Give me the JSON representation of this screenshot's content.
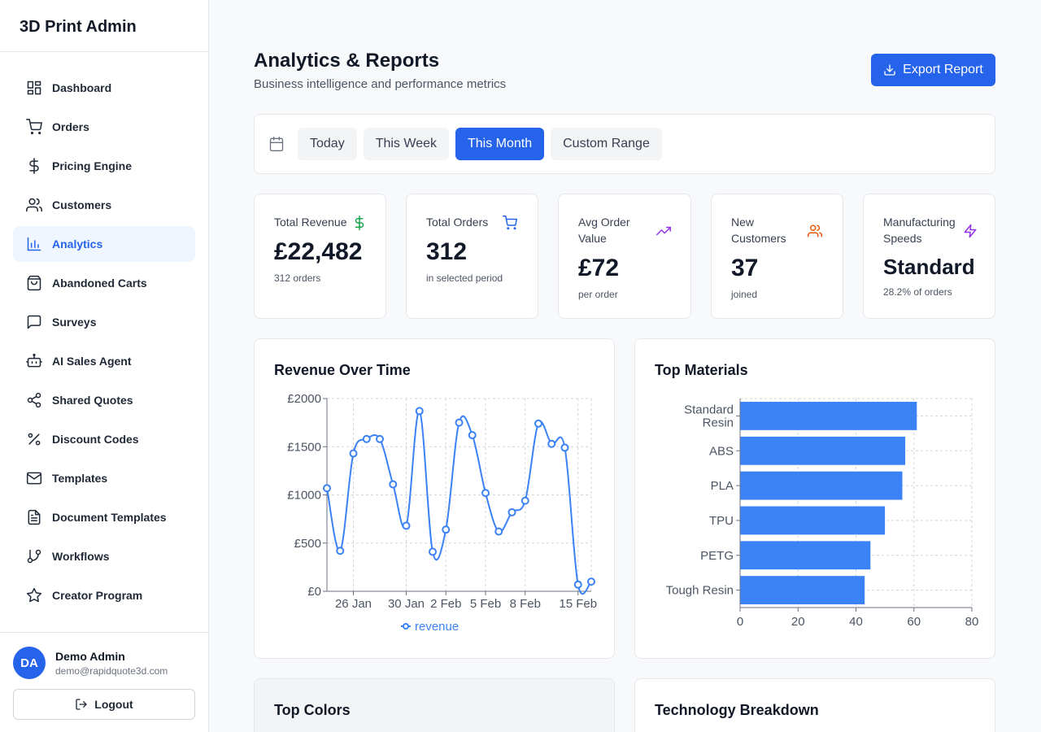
{
  "brand": "3D Print Admin",
  "nav": [
    {
      "label": "Dashboard",
      "icon": "dashboard-icon"
    },
    {
      "label": "Orders",
      "icon": "cart-icon"
    },
    {
      "label": "Pricing Engine",
      "icon": "dollar-icon"
    },
    {
      "label": "Customers",
      "icon": "users-icon"
    },
    {
      "label": "Analytics",
      "icon": "bar-chart-icon",
      "active": true
    },
    {
      "label": "Abandoned Carts",
      "icon": "shopping-bag-icon"
    },
    {
      "label": "Surveys",
      "icon": "message-square-icon"
    },
    {
      "label": "AI Sales Agent",
      "icon": "bot-icon"
    },
    {
      "label": "Shared Quotes",
      "icon": "share-icon"
    },
    {
      "label": "Discount Codes",
      "icon": "percent-icon"
    },
    {
      "label": "Templates",
      "icon": "mail-icon"
    },
    {
      "label": "Document Templates",
      "icon": "file-text-icon"
    },
    {
      "label": "Workflows",
      "icon": "git-branch-icon"
    },
    {
      "label": "Creator Program",
      "icon": "star-icon"
    }
  ],
  "user": {
    "initials": "DA",
    "name": "Demo Admin",
    "email": "demo@rapidquote3d.com",
    "logout_label": "Logout"
  },
  "header": {
    "title": "Analytics & Reports",
    "subtitle": "Business intelligence and performance metrics",
    "export_label": "Export Report"
  },
  "ranges": [
    {
      "label": "Today"
    },
    {
      "label": "This Week"
    },
    {
      "label": "This Month",
      "active": true
    },
    {
      "label": "Custom Range"
    }
  ],
  "stats": [
    {
      "label": "Total Revenue",
      "value": "£22,482",
      "sub": "312 orders",
      "icon": "dollar-icon",
      "color": "#16a34a"
    },
    {
      "label": "Total Orders",
      "value": "312",
      "sub": "in selected period",
      "icon": "cart-icon",
      "color": "#2563eb"
    },
    {
      "label": "Avg Order Value",
      "value": "£72",
      "sub": "per order",
      "icon": "trending-up-icon",
      "color": "#9333ea"
    },
    {
      "label": "New Customers",
      "value": "37",
      "sub": "joined",
      "icon": "users-icon",
      "color": "#ea580c"
    },
    {
      "label": "Manufacturing Speeds",
      "value": "Standard",
      "sub": "28.2% of orders",
      "icon": "zap-icon",
      "color": "#9333ea"
    }
  ],
  "cards": {
    "revenue_title": "Revenue Over Time",
    "materials_title": "Top Materials",
    "colors_title": "Top Colors",
    "technology_title": "Technology Breakdown"
  },
  "chart_data": [
    {
      "type": "line",
      "title": "Revenue Over Time",
      "series": [
        {
          "name": "revenue",
          "color": "#3b82f6",
          "values": [
            1070,
            420,
            1430,
            1580,
            1580,
            1110,
            680,
            1870,
            410,
            640,
            1750,
            1620,
            1020,
            620,
            820,
            940,
            1740,
            1530,
            1490,
            70,
            100
          ]
        }
      ],
      "x_tick_labels": [
        "26 Jan",
        "30 Jan",
        "2 Feb",
        "5 Feb",
        "8 Feb",
        "15 Feb"
      ],
      "y_ticks": [
        "£0",
        "£500",
        "£1000",
        "£1500",
        "£2000"
      ],
      "ylim": [
        0,
        2000
      ],
      "grid": true,
      "legend": "bottom"
    },
    {
      "type": "bar",
      "orientation": "horizontal",
      "title": "Top Materials",
      "categories": [
        "Standard Resin",
        "ABS",
        "PLA",
        "TPU",
        "PETG",
        "Tough Resin"
      ],
      "values": [
        61,
        57,
        56,
        50,
        45,
        43
      ],
      "color": "#3b82f6",
      "xlim": [
        0,
        80
      ],
      "x_ticks": [
        0,
        20,
        40,
        60,
        80
      ],
      "grid": true
    }
  ]
}
